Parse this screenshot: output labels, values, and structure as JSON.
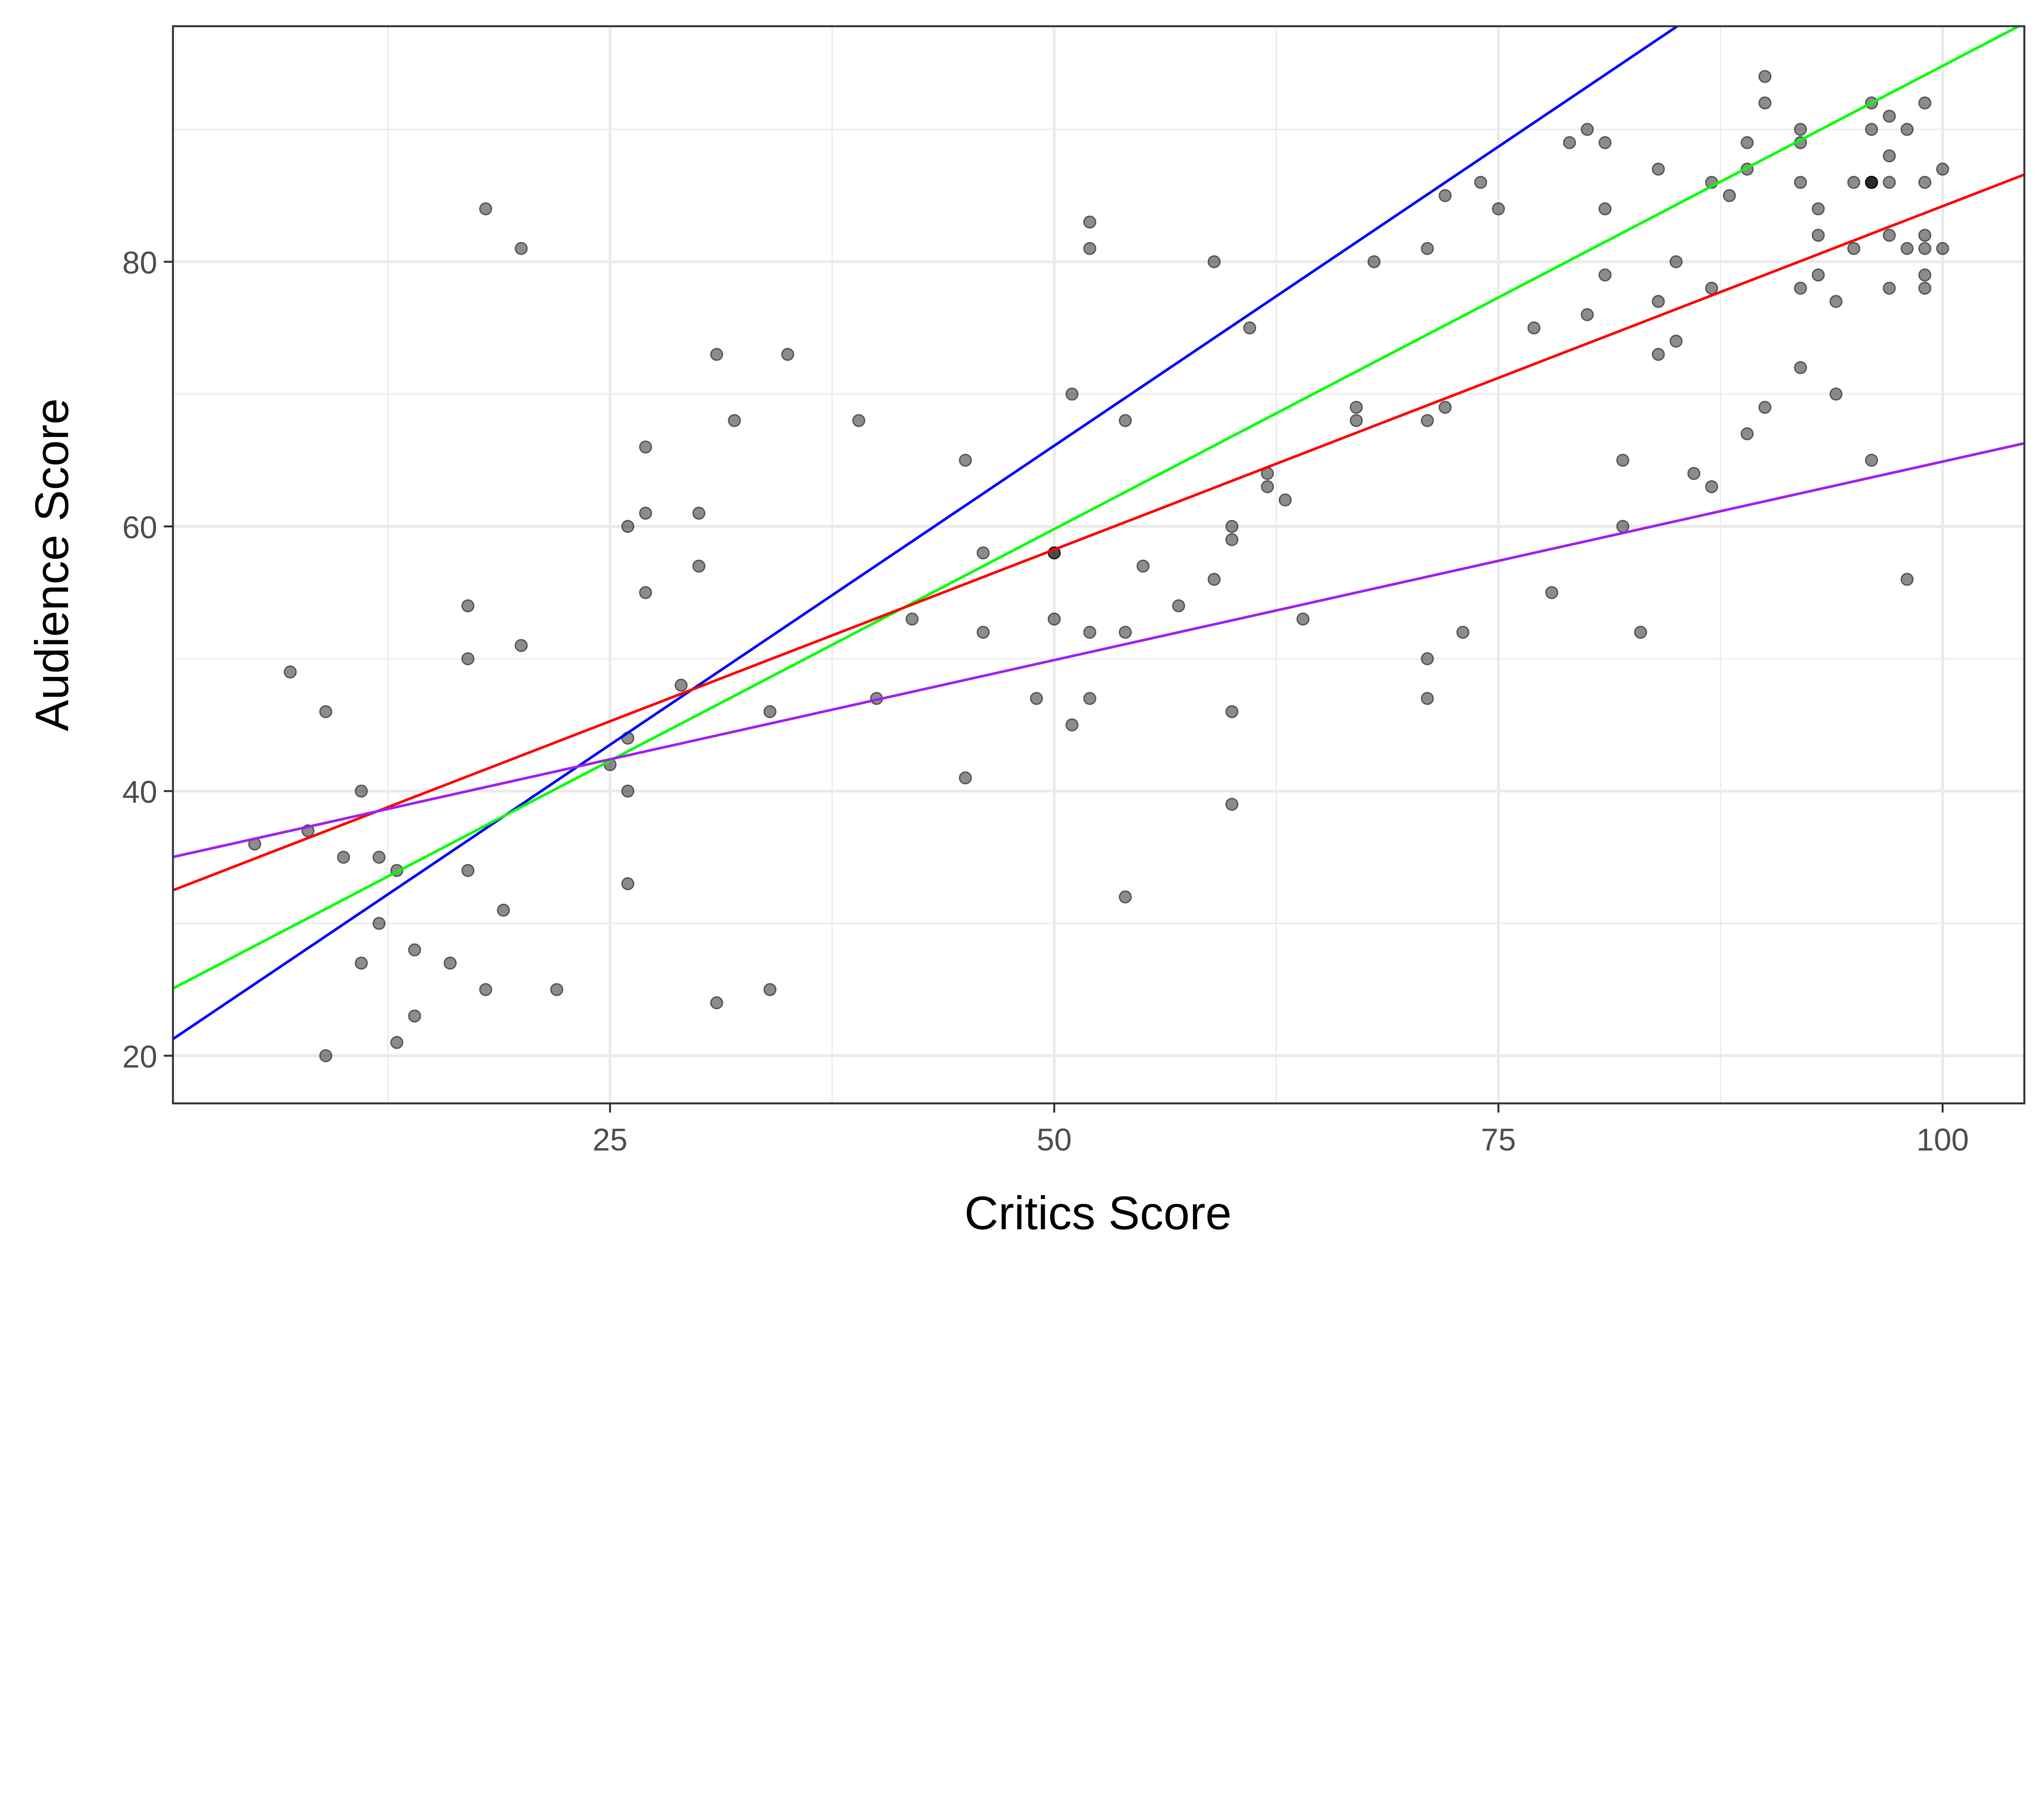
{
  "chart_data": {
    "type": "scatter",
    "xlabel": "Critics Score",
    "ylabel": "Audience Score",
    "xlim": [
      0.4,
      104.6
    ],
    "ylim": [
      16.4,
      97.8
    ],
    "x_ticks": [
      25,
      50,
      75,
      100
    ],
    "y_ticks": [
      20,
      40,
      60,
      80
    ],
    "x_tick_labels": [
      "25",
      "50",
      "75",
      "100"
    ],
    "y_tick_labels": [
      "20",
      "40",
      "60",
      "80"
    ],
    "grid": true,
    "point_color": "#000000",
    "point_alpha": 0.45,
    "points": [
      [
        5,
        36
      ],
      [
        7,
        49
      ],
      [
        8,
        37
      ],
      [
        9,
        46
      ],
      [
        9,
        20
      ],
      [
        10,
        35
      ],
      [
        11,
        40
      ],
      [
        11,
        27
      ],
      [
        12,
        35
      ],
      [
        12,
        30
      ],
      [
        13,
        34
      ],
      [
        13,
        21
      ],
      [
        14,
        28
      ],
      [
        14,
        23
      ],
      [
        16,
        27
      ],
      [
        17,
        54
      ],
      [
        17,
        50
      ],
      [
        17,
        34
      ],
      [
        18,
        84
      ],
      [
        18,
        25
      ],
      [
        19,
        31
      ],
      [
        20,
        81
      ],
      [
        20,
        51
      ],
      [
        22,
        25
      ],
      [
        25,
        42
      ],
      [
        26,
        60
      ],
      [
        26,
        44
      ],
      [
        26,
        40
      ],
      [
        26,
        33
      ],
      [
        27,
        66
      ],
      [
        27,
        61
      ],
      [
        27,
        55
      ],
      [
        29,
        48
      ],
      [
        30,
        61
      ],
      [
        30,
        57
      ],
      [
        31,
        73
      ],
      [
        31,
        24
      ],
      [
        32,
        68
      ],
      [
        34,
        46
      ],
      [
        34,
        25
      ],
      [
        35,
        73
      ],
      [
        39,
        68
      ],
      [
        40,
        47
      ],
      [
        42,
        53
      ],
      [
        45,
        65
      ],
      [
        45,
        41
      ],
      [
        46,
        58
      ],
      [
        46,
        52
      ],
      [
        49,
        47
      ],
      [
        50,
        58
      ],
      [
        50,
        58
      ],
      [
        50,
        53
      ],
      [
        51,
        70
      ],
      [
        51,
        45
      ],
      [
        52,
        83
      ],
      [
        52,
        81
      ],
      [
        52,
        52
      ],
      [
        52,
        47
      ],
      [
        54,
        68
      ],
      [
        54,
        52
      ],
      [
        54,
        32
      ],
      [
        55,
        57
      ],
      [
        57,
        54
      ],
      [
        59,
        80
      ],
      [
        59,
        56
      ],
      [
        60,
        60
      ],
      [
        60,
        59
      ],
      [
        60,
        46
      ],
      [
        60,
        39
      ],
      [
        61,
        75
      ],
      [
        62,
        64
      ],
      [
        62,
        63
      ],
      [
        63,
        62
      ],
      [
        64,
        53
      ],
      [
        67,
        69
      ],
      [
        67,
        68
      ],
      [
        68,
        80
      ],
      [
        71,
        81
      ],
      [
        71,
        68
      ],
      [
        71,
        50
      ],
      [
        71,
        47
      ],
      [
        72,
        85
      ],
      [
        72,
        69
      ],
      [
        73,
        52
      ],
      [
        74,
        86
      ],
      [
        75,
        84
      ],
      [
        77,
        75
      ],
      [
        78,
        55
      ],
      [
        79,
        89
      ],
      [
        80,
        90
      ],
      [
        80,
        76
      ],
      [
        81,
        89
      ],
      [
        81,
        84
      ],
      [
        81,
        79
      ],
      [
        82,
        65
      ],
      [
        82,
        60
      ],
      [
        83,
        52
      ],
      [
        84,
        87
      ],
      [
        84,
        77
      ],
      [
        84,
        73
      ],
      [
        85,
        80
      ],
      [
        85,
        74
      ],
      [
        86,
        64
      ],
      [
        87,
        86
      ],
      [
        87,
        78
      ],
      [
        87,
        63
      ],
      [
        88,
        85
      ],
      [
        89,
        89
      ],
      [
        89,
        87
      ],
      [
        89,
        67
      ],
      [
        90,
        94
      ],
      [
        90,
        92
      ],
      [
        90,
        69
      ],
      [
        92,
        90
      ],
      [
        92,
        89
      ],
      [
        92,
        86
      ],
      [
        92,
        78
      ],
      [
        92,
        72
      ],
      [
        93,
        84
      ],
      [
        93,
        82
      ],
      [
        93,
        79
      ],
      [
        94,
        77
      ],
      [
        94,
        70
      ],
      [
        95,
        86
      ],
      [
        95,
        81
      ],
      [
        96,
        92
      ],
      [
        96,
        90
      ],
      [
        96,
        86
      ],
      [
        96,
        86
      ],
      [
        96,
        86
      ],
      [
        96,
        65
      ],
      [
        97,
        91
      ],
      [
        97,
        88
      ],
      [
        97,
        86
      ],
      [
        97,
        82
      ],
      [
        97,
        78
      ],
      [
        98,
        90
      ],
      [
        98,
        81
      ],
      [
        98,
        56
      ],
      [
        99,
        92
      ],
      [
        99,
        86
      ],
      [
        99,
        82
      ],
      [
        99,
        81
      ],
      [
        99,
        79
      ],
      [
        99,
        78
      ],
      [
        100,
        87
      ],
      [
        100,
        81
      ]
    ],
    "lines": [
      {
        "name": "blue",
        "color": "#0000FF",
        "intercept": 20.9,
        "slope": 0.904
      },
      {
        "name": "green",
        "color": "#00FF00",
        "intercept": 24.8,
        "slope": 0.7
      },
      {
        "name": "red",
        "color": "#FF0000",
        "intercept": 32.3,
        "slope": 0.519
      },
      {
        "name": "purple",
        "color": "#A020F0",
        "intercept": 34.9,
        "slope": 0.3
      }
    ]
  }
}
